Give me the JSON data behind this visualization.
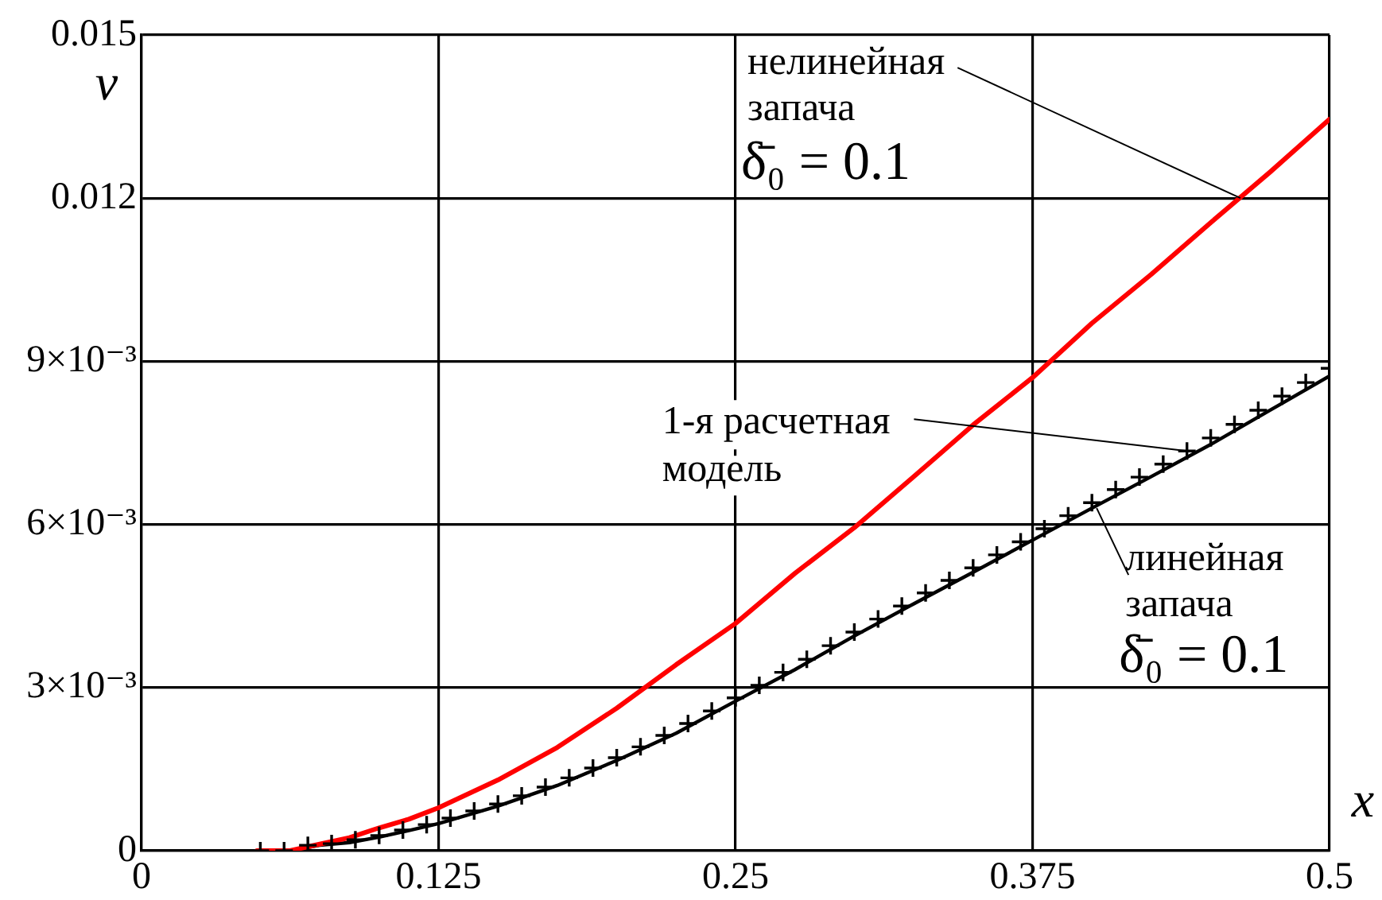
{
  "chart_data": {
    "type": "line",
    "xlabel": "x",
    "ylabel": "v",
    "xlim": [
      0,
      0.5
    ],
    "ylim": [
      0,
      0.015
    ],
    "xticks": [
      0,
      0.125,
      0.25,
      0.375,
      0.5
    ],
    "yticks": [
      0,
      {
        "value": 0.003,
        "label": "3×10⁻³"
      },
      {
        "value": 0.006,
        "label": "6×10⁻³"
      },
      {
        "value": 0.009,
        "label": "9×10⁻³"
      },
      0.012,
      0.015
    ],
    "grid": true,
    "series": [
      {
        "color": "#ff0000",
        "x": [
          0.0486,
          0.0625,
          0.075,
          0.0875,
          0.1,
          0.1125,
          0.125,
          0.15,
          0.175,
          0.2,
          0.225,
          0.25,
          0.275,
          0.3,
          0.325,
          0.35,
          0.375,
          0.4,
          0.425,
          0.45,
          0.475,
          0.5
        ],
        "values": [
          0,
          0,
          0.00012,
          0.00024,
          0.00042,
          0.00058,
          0.00079,
          0.0013,
          0.0019,
          0.00262,
          0.00342,
          0.00418,
          0.0051,
          0.00594,
          0.00688,
          0.00783,
          0.0087,
          0.0097,
          0.0106,
          0.01155,
          0.01248,
          0.01345
        ]
      },
      {
        "color": "#000000",
        "x": [
          0.0486,
          0.0625,
          0.075,
          0.0875,
          0.1,
          0.1125,
          0.125,
          0.15,
          0.175,
          0.2,
          0.225,
          0.25,
          0.275,
          0.3,
          0.325,
          0.35,
          0.375,
          0.4,
          0.425,
          0.45,
          0.475,
          0.5
        ],
        "values": [
          0,
          0,
          0.0001,
          0.00015,
          0.00025,
          0.00037,
          0.0005,
          0.00082,
          0.0012,
          0.00166,
          0.00216,
          0.00275,
          0.00333,
          0.00395,
          0.00454,
          0.00512,
          0.00571,
          0.0063,
          0.00688,
          0.00747,
          0.0081,
          0.00873
        ]
      },
      {
        "type": "scatter",
        "color": "#000000",
        "marker": "cross",
        "x": [
          0.05,
          0.06,
          0.07,
          0.08,
          0.09,
          0.1,
          0.11,
          0.12,
          0.13,
          0.14,
          0.15,
          0.16,
          0.17,
          0.18,
          0.19,
          0.2,
          0.21,
          0.22,
          0.23,
          0.24,
          0.25,
          0.26,
          0.27,
          0.28,
          0.29,
          0.3,
          0.31,
          0.32,
          0.33,
          0.34,
          0.35,
          0.36,
          0.37,
          0.38,
          0.39,
          0.4,
          0.41,
          0.42,
          0.43,
          0.44,
          0.45,
          0.46,
          0.47,
          0.48,
          0.49,
          0.5
        ],
        "values": [
          0,
          0,
          0.0001,
          0.00013,
          0.0002,
          0.00028,
          0.00038,
          0.00048,
          0.0006,
          0.00073,
          0.00086,
          0.00101,
          0.00117,
          0.00134,
          0.00152,
          0.00171,
          0.00191,
          0.00212,
          0.00234,
          0.00257,
          0.00281,
          0.00304,
          0.00328,
          0.00352,
          0.00377,
          0.00402,
          0.00426,
          0.0045,
          0.00474,
          0.00497,
          0.0052,
          0.00544,
          0.00568,
          0.00592,
          0.00616,
          0.0064,
          0.00664,
          0.00687,
          0.00711,
          0.00735,
          0.00759,
          0.00784,
          0.0081,
          0.00836,
          0.00861,
          0.00887
        ]
      }
    ],
    "annotations": [
      {
        "text": "нелинейная\nзапача\nδ̄₀ = 0.1",
        "x": 0.4625,
        "y": 0.012
      },
      {
        "text": "1-я расчетная\nмодель",
        "x": 0.44,
        "y": 0.00735
      },
      {
        "text": "линейная\nзапача\nδ̄₀ = 0.1",
        "x": 0.402,
        "y": 0.0063
      }
    ]
  }
}
